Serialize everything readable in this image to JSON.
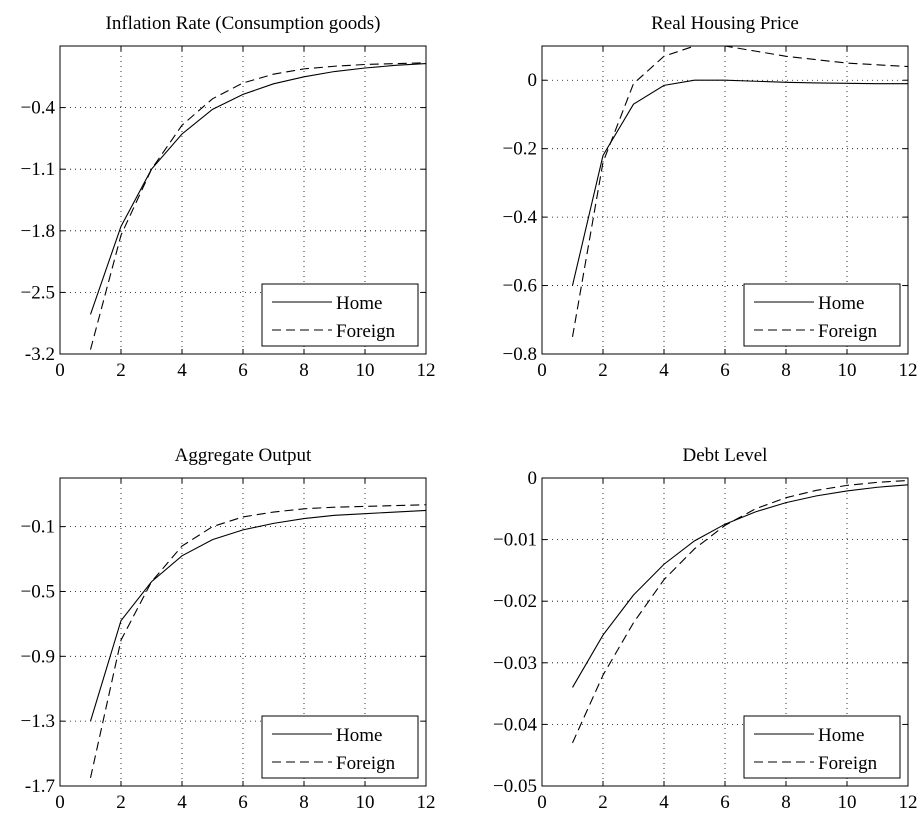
{
  "chart_data": [
    {
      "type": "line",
      "title": "Inflation Rate (Consumption goods)",
      "xlabel": "",
      "ylabel": "",
      "xlim": [
        0,
        12
      ],
      "ylim": [
        -3.2,
        0.3
      ],
      "xticks": [
        0,
        2,
        4,
        6,
        8,
        10,
        12
      ],
      "yticks": [
        -0.4,
        -1.1,
        -1.8,
        -2.5,
        -3.2
      ],
      "ytick_labels": [
        "−0.4",
        "−1.1",
        "−1.8",
        "−2.5",
        "-3.2"
      ],
      "grid": true,
      "legend_position": "bottom-right",
      "x": [
        1,
        2,
        3,
        4,
        5,
        6,
        7,
        8,
        9,
        10,
        11,
        12
      ],
      "series": [
        {
          "name": "Home",
          "style": "solid",
          "values": [
            -2.75,
            -1.75,
            -1.1,
            -0.7,
            -0.42,
            -0.25,
            -0.13,
            -0.05,
            0.01,
            0.05,
            0.08,
            0.1
          ]
        },
        {
          "name": "Foreign",
          "style": "dashed",
          "values": [
            -3.15,
            -1.85,
            -1.1,
            -0.6,
            -0.3,
            -0.12,
            -0.02,
            0.04,
            0.07,
            0.09,
            0.1,
            0.11
          ]
        }
      ]
    },
    {
      "type": "line",
      "title": "Real Housing Price",
      "xlabel": "",
      "ylabel": "",
      "xlim": [
        0,
        12
      ],
      "ylim": [
        -0.8,
        0.1
      ],
      "xticks": [
        0,
        2,
        4,
        6,
        8,
        10,
        12
      ],
      "yticks": [
        0,
        -0.2,
        -0.4,
        -0.6,
        -0.8
      ],
      "ytick_labels": [
        "0",
        "−0.2",
        "−0.4",
        "−0.6",
        "−0.8"
      ],
      "grid": true,
      "legend_position": "bottom-right",
      "x": [
        1,
        2,
        3,
        4,
        5,
        6,
        7,
        8,
        9,
        10,
        11,
        12
      ],
      "series": [
        {
          "name": "Home",
          "style": "solid",
          "values": [
            -0.6,
            -0.22,
            -0.07,
            -0.015,
            0.0,
            0.0,
            -0.003,
            -0.006,
            -0.008,
            -0.009,
            -0.01,
            -0.01
          ]
        },
        {
          "name": "Foreign",
          "style": "dashed",
          "values": [
            -0.75,
            -0.24,
            -0.01,
            0.07,
            0.1,
            0.1,
            0.085,
            0.07,
            0.06,
            0.05,
            0.045,
            0.04
          ]
        }
      ]
    },
    {
      "type": "line",
      "title": "Aggregate Output",
      "xlabel": "",
      "ylabel": "",
      "xlim": [
        0,
        12
      ],
      "ylim": [
        -1.7,
        0.2
      ],
      "xticks": [
        0,
        2,
        4,
        6,
        8,
        10,
        12
      ],
      "yticks": [
        -0.1,
        -0.5,
        -0.9,
        -1.3,
        -1.7
      ],
      "ytick_labels": [
        "−0.1",
        "−0.5",
        "−0.9",
        "−1.3",
        "-1.7"
      ],
      "grid": true,
      "legend_position": "bottom-right",
      "x": [
        1,
        2,
        3,
        4,
        5,
        6,
        7,
        8,
        9,
        10,
        11,
        12
      ],
      "series": [
        {
          "name": "Home",
          "style": "solid",
          "values": [
            -1.3,
            -0.68,
            -0.44,
            -0.28,
            -0.18,
            -0.12,
            -0.08,
            -0.05,
            -0.03,
            -0.02,
            -0.01,
            0.0
          ]
        },
        {
          "name": "Foreign",
          "style": "dashed",
          "values": [
            -1.65,
            -0.8,
            -0.44,
            -0.22,
            -0.1,
            -0.04,
            -0.01,
            0.01,
            0.02,
            0.025,
            0.03,
            0.035
          ]
        }
      ]
    },
    {
      "type": "line",
      "title": "Debt Level",
      "xlabel": "",
      "ylabel": "",
      "xlim": [
        0,
        12
      ],
      "ylim": [
        -0.05,
        0
      ],
      "xticks": [
        0,
        2,
        4,
        6,
        8,
        10,
        12
      ],
      "yticks": [
        0,
        -0.01,
        -0.02,
        -0.03,
        -0.04,
        -0.05
      ],
      "ytick_labels": [
        "0",
        "−0.01",
        "−0.02",
        "−0.03",
        "−0.04",
        "−0.05"
      ],
      "grid": true,
      "legend_position": "bottom-right",
      "x": [
        1,
        2,
        3,
        4,
        5,
        6,
        7,
        8,
        9,
        10,
        11,
        12
      ],
      "series": [
        {
          "name": "Home",
          "style": "solid",
          "values": [
            -0.034,
            -0.0255,
            -0.019,
            -0.014,
            -0.0102,
            -0.0075,
            -0.0055,
            -0.004,
            -0.0029,
            -0.0021,
            -0.0015,
            -0.0011
          ]
        },
        {
          "name": "Foreign",
          "style": "dashed",
          "values": [
            -0.043,
            -0.032,
            -0.0235,
            -0.0165,
            -0.0115,
            -0.0077,
            -0.005,
            -0.0032,
            -0.002,
            -0.0012,
            -0.0007,
            -0.0004
          ]
        }
      ]
    }
  ]
}
